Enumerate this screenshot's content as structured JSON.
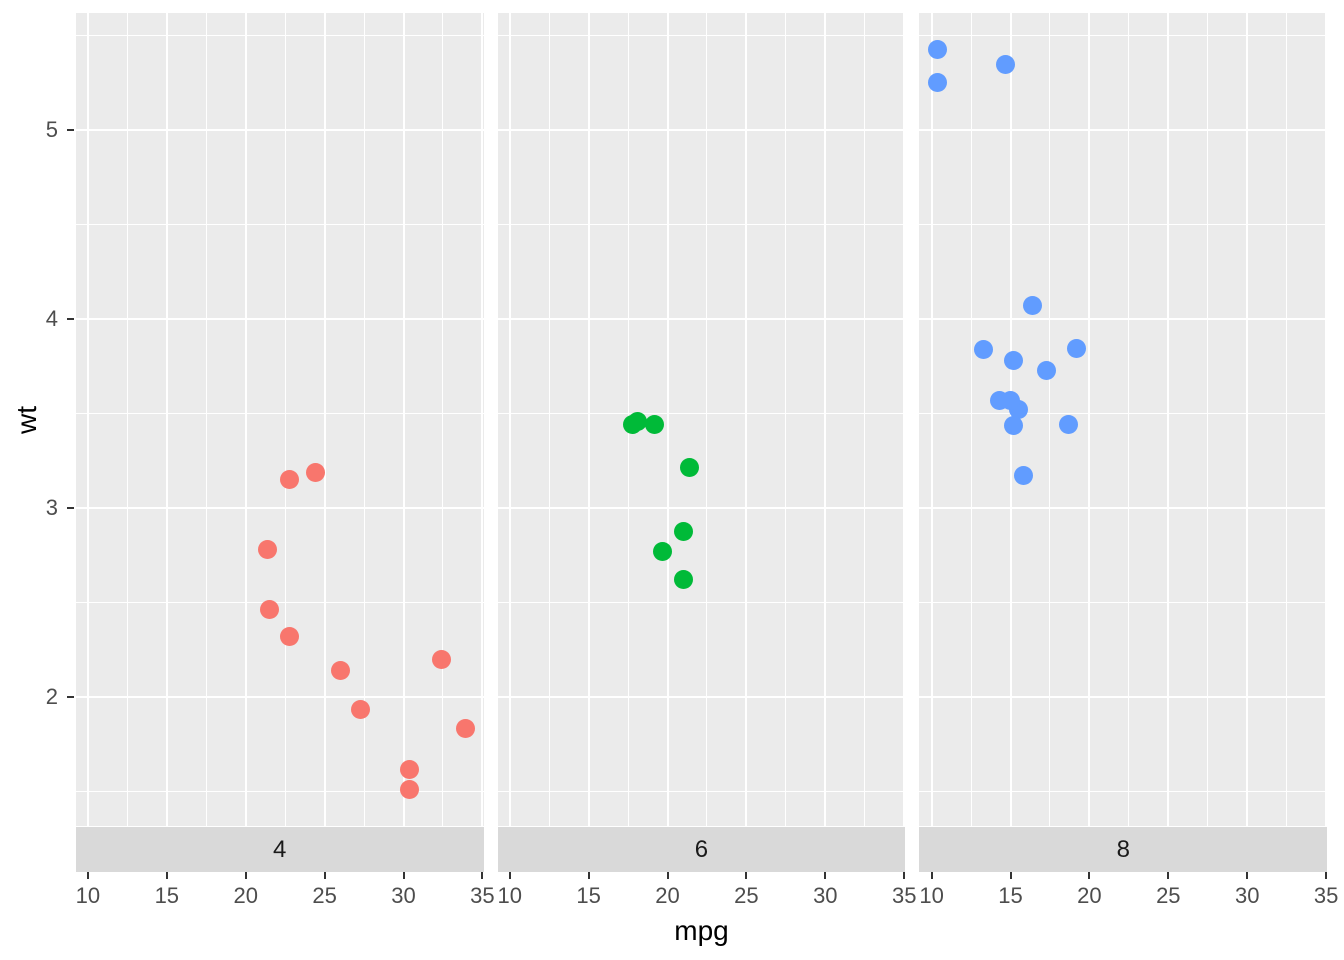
{
  "figure": {
    "background": "#FFFFFF",
    "panel_background": "#EBEBEB",
    "grid_color": "#FFFFFF",
    "strip_background": "#D9D9D9",
    "tick_label_color": "#4D4D4D",
    "tick_mark_color": "#333333",
    "strip_text_color": "#1A1A1A",
    "axis_title_color": "#000000"
  },
  "chart_data": {
    "type": "scatter",
    "title": "",
    "xlabel": "mpg",
    "ylabel": "wt",
    "facet_variable": "cyl",
    "legend_position": "none",
    "grid": true,
    "xlim": [
      9.225,
      35.075
    ],
    "ylim": [
      1.3175,
      5.619
    ],
    "x_major_ticks": [
      10,
      15,
      20,
      25,
      30,
      35
    ],
    "x_minor_ticks": [
      12.5,
      17.5,
      22.5,
      27.5,
      32.5
    ],
    "y_major_ticks": [
      2,
      3,
      4,
      5
    ],
    "y_minor_ticks": [
      1.5,
      2.5,
      3.5,
      4.5,
      5.5
    ],
    "facets": [
      {
        "label": "4",
        "color": "#F8766D",
        "points": [
          {
            "mpg": 22.8,
            "wt": 2.32
          },
          {
            "mpg": 24.4,
            "wt": 3.19
          },
          {
            "mpg": 22.8,
            "wt": 3.15
          },
          {
            "mpg": 32.4,
            "wt": 2.2
          },
          {
            "mpg": 30.4,
            "wt": 1.615
          },
          {
            "mpg": 33.9,
            "wt": 1.835
          },
          {
            "mpg": 21.5,
            "wt": 2.465
          },
          {
            "mpg": 27.3,
            "wt": 1.935
          },
          {
            "mpg": 26.0,
            "wt": 2.14
          },
          {
            "mpg": 30.4,
            "wt": 1.513
          },
          {
            "mpg": 21.4,
            "wt": 2.78
          }
        ]
      },
      {
        "label": "6",
        "color": "#00BA38",
        "points": [
          {
            "mpg": 21.0,
            "wt": 2.62
          },
          {
            "mpg": 21.0,
            "wt": 2.875
          },
          {
            "mpg": 21.4,
            "wt": 3.215
          },
          {
            "mpg": 18.1,
            "wt": 3.46
          },
          {
            "mpg": 19.2,
            "wt": 3.44
          },
          {
            "mpg": 17.8,
            "wt": 3.44
          },
          {
            "mpg": 19.7,
            "wt": 2.77
          }
        ]
      },
      {
        "label": "8",
        "color": "#619CFF",
        "points": [
          {
            "mpg": 18.7,
            "wt": 3.44
          },
          {
            "mpg": 14.3,
            "wt": 3.57
          },
          {
            "mpg": 16.4,
            "wt": 4.07
          },
          {
            "mpg": 17.3,
            "wt": 3.73
          },
          {
            "mpg": 15.2,
            "wt": 3.78
          },
          {
            "mpg": 10.4,
            "wt": 5.25
          },
          {
            "mpg": 10.4,
            "wt": 5.424
          },
          {
            "mpg": 14.7,
            "wt": 5.345
          },
          {
            "mpg": 15.5,
            "wt": 3.52
          },
          {
            "mpg": 15.2,
            "wt": 3.435
          },
          {
            "mpg": 13.3,
            "wt": 3.84
          },
          {
            "mpg": 19.2,
            "wt": 3.845
          },
          {
            "mpg": 15.8,
            "wt": 3.17
          },
          {
            "mpg": 15.0,
            "wt": 3.57
          }
        ]
      }
    ]
  }
}
